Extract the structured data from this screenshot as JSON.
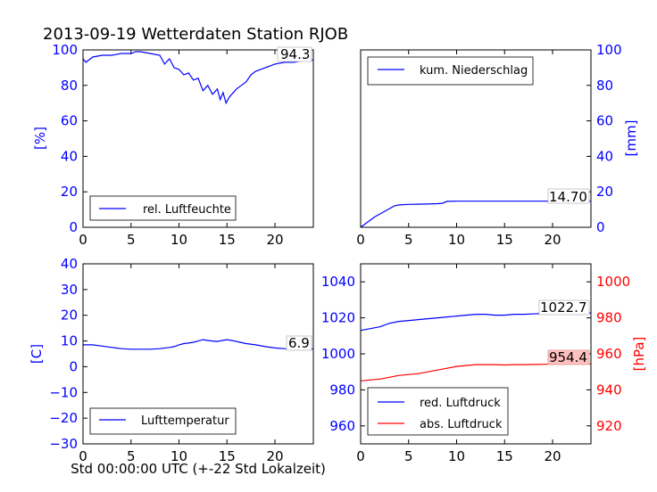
{
  "title": "2013-09-19 Wetterdaten Station RJOB",
  "xlabel": "Std 00:00:00 UTC (+-22 Std Lokalzeit)",
  "colors": {
    "blue": "#0000ff",
    "red": "#ff0000",
    "text": "#000000"
  },
  "x_ticks": [
    "0",
    "5",
    "10",
    "15",
    "20"
  ],
  "chart_data": [
    {
      "type": "line",
      "panel": "top-left",
      "ylabel": "[%]",
      "xlim": [
        0,
        24
      ],
      "ylim": [
        0,
        100
      ],
      "yticks": [
        "0",
        "20",
        "40",
        "60",
        "80",
        "100"
      ],
      "legend": {
        "label": "rel. Luftfeuchte",
        "loc": "lower-center"
      },
      "annotation": "94.3",
      "series": [
        {
          "name": "rel. Luftfeuchte",
          "color": "#0000ff",
          "x": [
            0,
            0.3,
            1,
            2,
            3,
            4,
            5,
            5.5,
            6,
            7,
            8,
            8.5,
            9,
            9.5,
            10,
            10.5,
            11,
            11.5,
            12,
            12.5,
            13,
            13.5,
            14,
            14.3,
            14.6,
            14.9,
            15.2,
            15.5,
            16,
            16.5,
            17,
            17.5,
            18,
            19,
            20,
            21,
            22,
            23,
            24
          ],
          "y": [
            95,
            93,
            96,
            97,
            97,
            98,
            98,
            99,
            99,
            98,
            97,
            92,
            95,
            90,
            89,
            86,
            87,
            83,
            84,
            77,
            80,
            75,
            78,
            72,
            76,
            70,
            73,
            75,
            78,
            80,
            82,
            86,
            88,
            90,
            92,
            93,
            93,
            94,
            94.3
          ]
        }
      ]
    },
    {
      "type": "line",
      "panel": "top-right",
      "ylabel": "[mm]",
      "xlim": [
        0,
        24
      ],
      "ylim": [
        0,
        100
      ],
      "yticks": [
        "0",
        "20",
        "40",
        "60",
        "80",
        "100"
      ],
      "legend": {
        "label": "kum. Niederschlag",
        "loc": "upper-center"
      },
      "annotation": "14.70",
      "series": [
        {
          "name": "kum. Niederschlag",
          "color": "#0000ff",
          "x": [
            0,
            0.5,
            1,
            1.5,
            2,
            2.5,
            3,
            3.5,
            4,
            5,
            6,
            7,
            8,
            8.5,
            9,
            10,
            12,
            15,
            18,
            20,
            22,
            24
          ],
          "y": [
            0,
            2,
            4,
            6,
            7.5,
            9,
            10.5,
            12,
            12.6,
            12.9,
            13.0,
            13.1,
            13.3,
            13.5,
            14.6,
            14.7,
            14.7,
            14.7,
            14.7,
            14.7,
            14.7,
            14.7
          ]
        }
      ]
    },
    {
      "type": "line",
      "panel": "bottom-left",
      "ylabel": "[C]",
      "xlim": [
        0,
        24
      ],
      "ylim": [
        -30,
        40
      ],
      "yticks": [
        "−30",
        "−20",
        "−10",
        "0",
        "10",
        "20",
        "30",
        "40"
      ],
      "legend": {
        "label": "Lufttemperatur",
        "loc": "lower-center"
      },
      "annotation": "6.9",
      "series": [
        {
          "name": "Lufttemperatur",
          "color": "#0000ff",
          "x": [
            0,
            1,
            2,
            3,
            4,
            5,
            6,
            7,
            8,
            9,
            9.5,
            10,
            10.5,
            11,
            11.5,
            12,
            12.5,
            13,
            13.5,
            14,
            14.5,
            15,
            15.5,
            16,
            17,
            18,
            19,
            20,
            21,
            22,
            23,
            24
          ],
          "y": [
            8.5,
            8.5,
            8,
            7.5,
            7,
            6.8,
            6.8,
            6.8,
            7,
            7.5,
            7.8,
            8.5,
            9,
            9.2,
            9.5,
            10,
            10.5,
            10.2,
            10,
            9.8,
            10.2,
            10.5,
            10.2,
            9.8,
            9,
            8.5,
            7.8,
            7.3,
            7,
            7,
            6.9,
            6.9
          ]
        }
      ]
    },
    {
      "type": "line",
      "panel": "bottom-right",
      "xlim": [
        0,
        24
      ],
      "left_axis": {
        "ylim": [
          950,
          1050
        ],
        "yticks": [
          "960",
          "980",
          "1000",
          "1020",
          "1040"
        ],
        "color": "#0000ff"
      },
      "right_axis": {
        "ylabel": "[hPa]",
        "ylim": [
          910,
          1010
        ],
        "yticks": [
          "920",
          "940",
          "960",
          "980",
          "1000"
        ],
        "color": "#ff0000"
      },
      "legend": {
        "labels": [
          "red. Luftdruck",
          "abs. Luftdruck"
        ],
        "loc": "lower-center"
      },
      "annotations": [
        "1022.7",
        "954.4"
      ],
      "series": [
        {
          "name": "red. Luftdruck",
          "color": "#0000ff",
          "axis": "left",
          "x": [
            0,
            1,
            2,
            3,
            4,
            5,
            6,
            7,
            8,
            9,
            10,
            11,
            12,
            13,
            14,
            15,
            16,
            17,
            18,
            19,
            20,
            21,
            22,
            23,
            24
          ],
          "y": [
            1013,
            1014,
            1015,
            1017,
            1018,
            1018.5,
            1019,
            1019.5,
            1020,
            1020.5,
            1021,
            1021.5,
            1022,
            1022,
            1021.5,
            1021.5,
            1022,
            1022,
            1022.2,
            1022.5,
            1022.5,
            1022.6,
            1022.7,
            1022.7,
            1022.7
          ]
        },
        {
          "name": "abs. Luftdruck",
          "color": "#ff0000",
          "axis": "right",
          "x": [
            0,
            1,
            2,
            3,
            4,
            5,
            6,
            7,
            8,
            9,
            10,
            11,
            12,
            13,
            14,
            15,
            16,
            17,
            18,
            19,
            20,
            21,
            22,
            23,
            24
          ],
          "y": [
            945,
            945.5,
            946,
            947,
            948,
            948.5,
            949,
            950,
            951,
            952,
            953,
            953.5,
            954,
            954,
            954,
            953.8,
            954,
            954,
            954.1,
            954.2,
            954.2,
            954.3,
            954.4,
            954.4,
            954.4
          ]
        }
      ]
    }
  ]
}
